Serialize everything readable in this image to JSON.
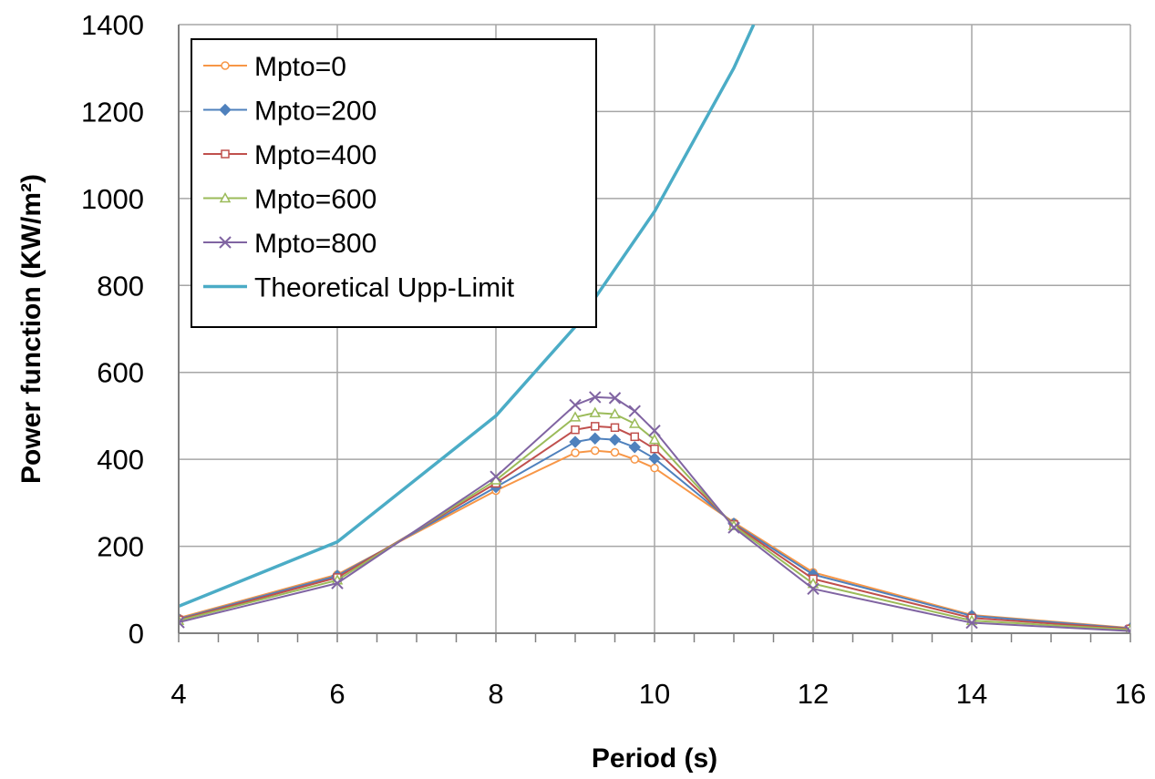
{
  "chart_data": {
    "type": "line",
    "title": "",
    "xlabel": "Period (s)",
    "ylabel": "Power function (KW/m²)",
    "xlim": [
      4,
      16
    ],
    "ylim": [
      0,
      1400
    ],
    "x_ticks": [
      "4",
      "6",
      "8",
      "10",
      "12",
      "14",
      "16"
    ],
    "y_ticks": [
      "0",
      "200",
      "400",
      "600",
      "800",
      "1000",
      "1200",
      "1400"
    ],
    "grid": true,
    "legend_position": "top-left",
    "series": [
      {
        "name": "Mpto=0",
        "color": "#F79646",
        "marker": "circle-open",
        "x": [
          4,
          6,
          8,
          9,
          9.25,
          9.5,
          9.75,
          10,
          11,
          12,
          14,
          16
        ],
        "y": [
          35,
          135,
          328,
          415,
          420,
          416,
          400,
          380,
          255,
          140,
          42,
          12
        ]
      },
      {
        "name": "Mpto=200",
        "color": "#4F81BD",
        "marker": "diamond-filled",
        "x": [
          4,
          6,
          8,
          9,
          9.25,
          9.5,
          9.75,
          10,
          11,
          12,
          14,
          16
        ],
        "y": [
          33,
          132,
          336,
          440,
          448,
          445,
          428,
          402,
          252,
          135,
          40,
          11
        ]
      },
      {
        "name": "Mpto=400",
        "color": "#C0504D",
        "marker": "square-open",
        "x": [
          4,
          6,
          8,
          9,
          9.25,
          9.5,
          9.75,
          10,
          11,
          12,
          14,
          16
        ],
        "y": [
          31,
          128,
          345,
          468,
          476,
          473,
          452,
          424,
          250,
          125,
          35,
          10
        ]
      },
      {
        "name": "Mpto=600",
        "color": "#9BBB59",
        "marker": "triangle-open",
        "x": [
          4,
          6,
          8,
          9,
          9.25,
          9.5,
          9.75,
          10,
          11,
          12,
          14,
          16
        ],
        "y": [
          29,
          122,
          352,
          497,
          507,
          504,
          482,
          445,
          247,
          114,
          29,
          8
        ]
      },
      {
        "name": "Mpto=800",
        "color": "#8064A2",
        "marker": "x",
        "x": [
          4,
          6,
          8,
          9,
          9.25,
          9.5,
          9.75,
          10,
          11,
          12,
          14,
          16
        ],
        "y": [
          25,
          115,
          360,
          525,
          543,
          541,
          511,
          466,
          243,
          102,
          24,
          5
        ]
      },
      {
        "name": "Theoretical Upp-Limit",
        "color": "#4BACC6",
        "marker": "none",
        "x": [
          4,
          6,
          8,
          9,
          10,
          11,
          11.25
        ],
        "y": [
          62,
          210,
          500,
          705,
          970,
          1300,
          1400
        ]
      }
    ]
  }
}
